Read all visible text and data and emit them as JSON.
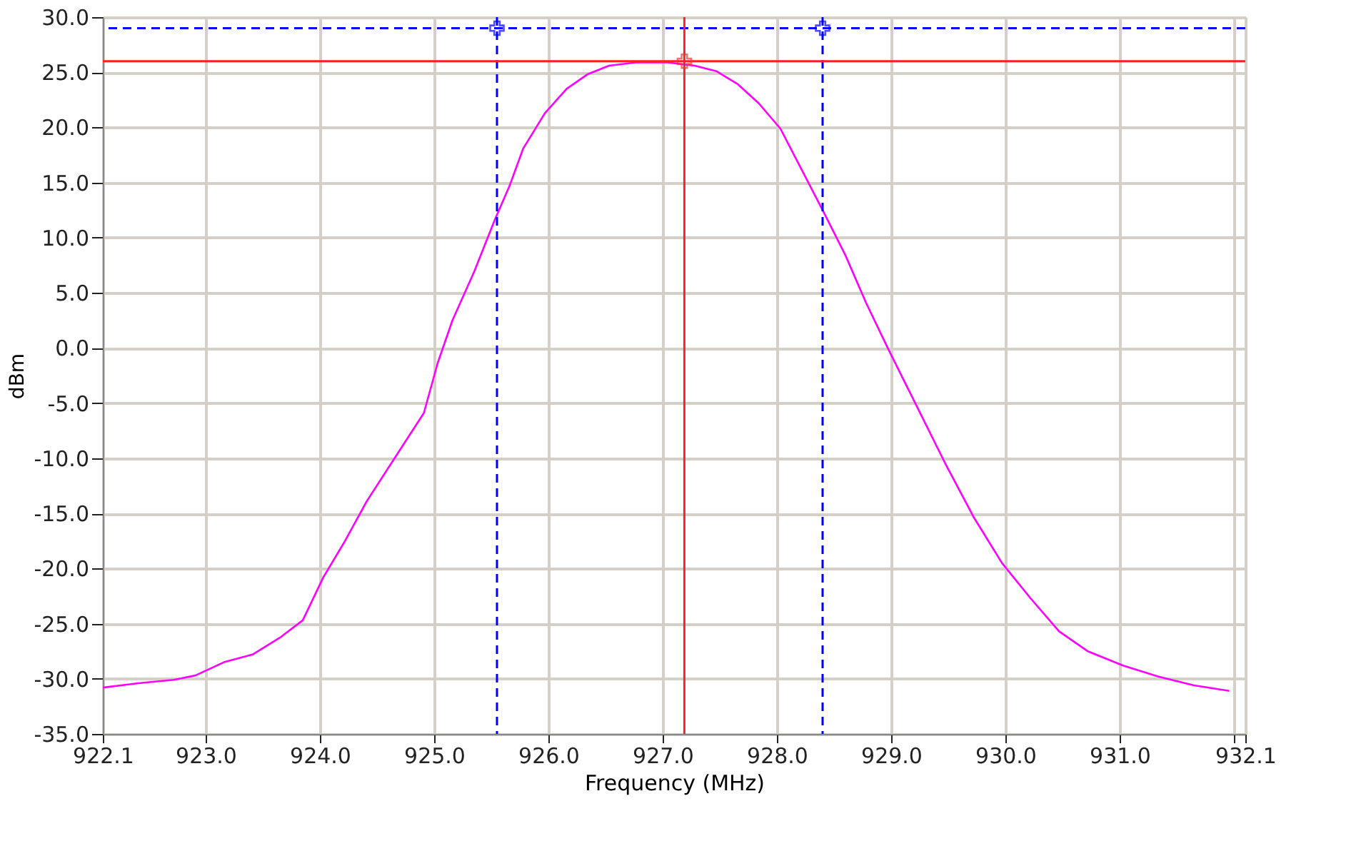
{
  "chart_data": {
    "type": "line",
    "xlabel": "Frequency (MHz)",
    "ylabel": "dBm",
    "xlim": [
      922.1,
      932.1
    ],
    "xticks": [
      {
        "value": 922.1,
        "label": "922.1"
      },
      {
        "value": 923,
        "label": "923.0"
      },
      {
        "value": 924,
        "label": "924.0"
      },
      {
        "value": 925,
        "label": "925.0"
      },
      {
        "value": 926,
        "label": "926.0"
      },
      {
        "value": 927,
        "label": "927.0"
      },
      {
        "value": 928,
        "label": "928.0"
      },
      {
        "value": 929,
        "label": "929.0"
      },
      {
        "value": 930,
        "label": "930.0"
      },
      {
        "value": 931,
        "label": "931.0"
      },
      {
        "value": 932,
        "label": null
      },
      {
        "value": 932.1,
        "label": "932.1"
      }
    ],
    "ylim": [
      -35,
      30
    ],
    "yticks": [
      {
        "value": -35,
        "label": "-35.0"
      },
      {
        "value": -30,
        "label": "-30.0"
      },
      {
        "value": -25,
        "label": "-25.0"
      },
      {
        "value": -20,
        "label": "-20.0"
      },
      {
        "value": -15,
        "label": "-15.0"
      },
      {
        "value": -10,
        "label": "-10.0"
      },
      {
        "value": -5,
        "label": "-5.0"
      },
      {
        "value": 0,
        "label": "0.0"
      },
      {
        "value": 5,
        "label": "5.0"
      },
      {
        "value": 10,
        "label": "10.0"
      },
      {
        "value": 15,
        "label": "15.0"
      },
      {
        "value": 20,
        "label": "20.0"
      },
      {
        "value": 25,
        "label": "25.0"
      },
      {
        "value": 30,
        "label": "30.0"
      }
    ],
    "grid": true,
    "series": [
      {
        "color": "#ff00ff",
        "marker": "none",
        "line_style": "solid",
        "x": [
          922.1,
          922.41,
          922.72,
          922.91,
          923.16,
          923.41,
          923.66,
          923.85,
          924.03,
          924.22,
          924.41,
          924.66,
          924.91,
          925.03,
          925.16,
          925.35,
          925.53,
          925.66,
          925.78,
          925.97,
          926.16,
          926.34,
          926.53,
          926.78,
          927.03,
          927.28,
          927.47,
          927.66,
          927.84,
          928.03,
          928.22,
          928.41,
          928.6,
          928.78,
          928.97,
          929.22,
          929.47,
          929.72,
          929.97,
          930.22,
          930.47,
          930.72,
          931.03,
          931.34,
          931.65,
          931.96
        ],
        "values": [
          -30.8,
          -30.4,
          -30.1,
          -29.7,
          -28.5,
          -27.8,
          -26.2,
          -24.7,
          -20.8,
          -17.5,
          -13.9,
          -9.9,
          -5.9,
          -1.4,
          2.5,
          6.9,
          11.6,
          14.7,
          18.1,
          21.3,
          23.5,
          24.8,
          25.6,
          25.9,
          25.9,
          25.6,
          25.1,
          23.9,
          22.2,
          19.9,
          16.1,
          12.3,
          8.4,
          4.1,
          0.0,
          -5.2,
          -10.4,
          -15.3,
          -19.5,
          -22.7,
          -25.7,
          -27.5,
          -28.8,
          -29.8,
          -30.6,
          -31.1
        ]
      },
      {
        "type": "scatter",
        "color": "#0000ff",
        "marker": "cross",
        "x": [
          925.55,
          928.4
        ],
        "values": [
          29,
          29
        ]
      },
      {
        "type": "scatter",
        "color": "#ff3030",
        "marker": "cross",
        "x": [
          927.19
        ],
        "values": [
          26
        ]
      }
    ],
    "ref_lines": [
      {
        "axis": "y",
        "value": 29,
        "color": "#0000ff",
        "line_style": "dashed"
      },
      {
        "axis": "x",
        "value": 925.55,
        "color": "#0000ff",
        "line_style": "dashed"
      },
      {
        "axis": "x",
        "value": 928.4,
        "color": "#0000ff",
        "line_style": "dashed"
      },
      {
        "axis": "y",
        "value": 26,
        "color": "#ff2020",
        "line_style": "solid"
      },
      {
        "axis": "x",
        "value": 927.19,
        "color": "#ff2020",
        "line_style": "solid"
      }
    ]
  }
}
